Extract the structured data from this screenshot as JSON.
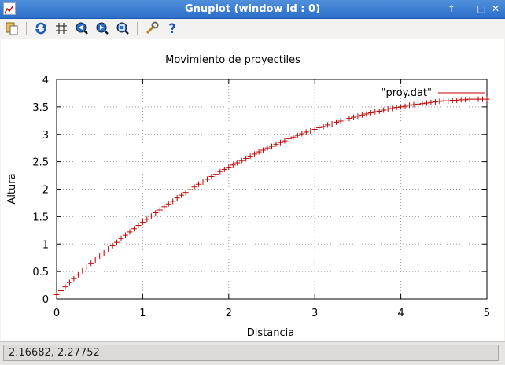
{
  "window": {
    "title": "Gnuplot (window id : 0)"
  },
  "toolbar": {
    "icons": [
      "copy-to-clipboard-icon",
      "replot-icon",
      "grid-icon",
      "previous-zoom-icon",
      "next-zoom-icon",
      "autoscale-icon",
      "options-icon",
      "help-icon"
    ]
  },
  "status": {
    "coordinates": "2.16682,  2.27752"
  },
  "chart_data": {
    "type": "scatter",
    "title": "Movimiento de proyectiles",
    "xlabel": "Distancia",
    "ylabel": "Altura",
    "xlim": [
      0,
      5
    ],
    "ylim": [
      0,
      4
    ],
    "xticks": [
      "0",
      "1",
      "2",
      "3",
      "4",
      "5"
    ],
    "yticks": [
      "0",
      "0.5",
      "1",
      "1.5",
      "2",
      "2.5",
      "3",
      "3.5",
      "4"
    ],
    "grid": true,
    "legend": "top-right",
    "series": [
      {
        "name": "\"proy.dat\"",
        "color": "#c00000",
        "marker": "+",
        "x": [
          0.0,
          0.05,
          0.1,
          0.15,
          0.2,
          0.25,
          0.3,
          0.35,
          0.4,
          0.45,
          0.5,
          0.55,
          0.6,
          0.65,
          0.7,
          0.75,
          0.8,
          0.85,
          0.9,
          0.95,
          1.0,
          1.05,
          1.1,
          1.15,
          1.2,
          1.25,
          1.3,
          1.35,
          1.4,
          1.45,
          1.5,
          1.55,
          1.6,
          1.65,
          1.7,
          1.75,
          1.8,
          1.85,
          1.9,
          1.95,
          2.0,
          2.05,
          2.1,
          2.15,
          2.2,
          2.25,
          2.3,
          2.35,
          2.4,
          2.45,
          2.5,
          2.55,
          2.6,
          2.65,
          2.7,
          2.75,
          2.8,
          2.85,
          2.9,
          2.95,
          3.0,
          3.05,
          3.1,
          3.15,
          3.2,
          3.25,
          3.3,
          3.35,
          3.4,
          3.45,
          3.5,
          3.55,
          3.6,
          3.65,
          3.7,
          3.75,
          3.8,
          3.85,
          3.9,
          3.95,
          4.0,
          4.05,
          4.1,
          4.15,
          4.2,
          4.25,
          4.3,
          4.35,
          4.4,
          4.45,
          4.5,
          4.55,
          4.6,
          4.65,
          4.7,
          4.75,
          4.8,
          4.85,
          4.9,
          4.95,
          5.0
        ],
        "y": [
          0.08,
          0.15,
          0.22,
          0.3,
          0.37,
          0.44,
          0.51,
          0.58,
          0.65,
          0.71,
          0.78,
          0.84,
          0.91,
          0.97,
          1.03,
          1.1,
          1.16,
          1.22,
          1.28,
          1.34,
          1.4,
          1.45,
          1.51,
          1.57,
          1.62,
          1.68,
          1.73,
          1.78,
          1.84,
          1.89,
          1.94,
          1.99,
          2.04,
          2.09,
          2.13,
          2.18,
          2.23,
          2.27,
          2.32,
          2.36,
          2.4,
          2.44,
          2.48,
          2.52,
          2.56,
          2.6,
          2.64,
          2.68,
          2.71,
          2.75,
          2.78,
          2.82,
          2.85,
          2.88,
          2.92,
          2.95,
          2.98,
          3.01,
          3.04,
          3.06,
          3.09,
          3.12,
          3.14,
          3.17,
          3.19,
          3.22,
          3.24,
          3.26,
          3.29,
          3.31,
          3.33,
          3.35,
          3.37,
          3.39,
          3.41,
          3.42,
          3.44,
          3.46,
          3.47,
          3.49,
          3.5,
          3.51,
          3.53,
          3.54,
          3.55,
          3.56,
          3.57,
          3.58,
          3.59,
          3.6,
          3.61,
          3.61,
          3.62,
          3.62,
          3.63,
          3.63,
          3.64,
          3.64,
          3.64,
          3.64,
          3.64
        ]
      }
    ]
  }
}
